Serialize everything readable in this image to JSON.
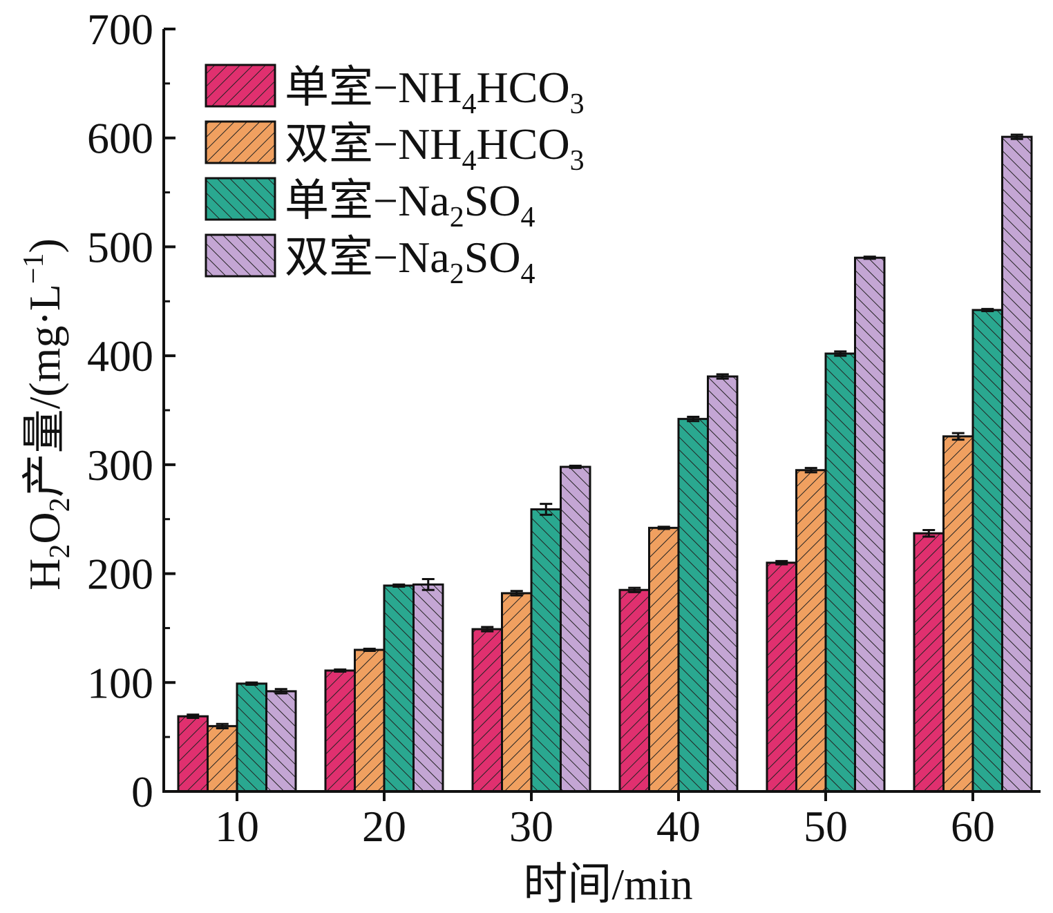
{
  "chart_data": {
    "type": "bar",
    "categories": [
      "10",
      "20",
      "30",
      "40",
      "50",
      "60"
    ],
    "xlabel": "时间/min",
    "ylabel": {
      "base": "H",
      "sub1": "2",
      "mid": "O",
      "sub2": "2",
      "rest": "产量/(mg·L",
      "sup": "−1",
      "end": ")"
    },
    "ylim": [
      0,
      700
    ],
    "yticks": [
      0,
      100,
      200,
      300,
      400,
      500,
      600,
      700
    ],
    "legend_position": "top-left",
    "series": [
      {
        "name": "单室−NH4HCO3",
        "label": {
          "text": "单室−NH",
          "sub1": "4",
          "mid": "HCO",
          "sub2": "3"
        },
        "color": "#e0306f",
        "hatch": "forward",
        "values": [
          69,
          111,
          149,
          185,
          210,
          237
        ],
        "errors": [
          1.5,
          1,
          2,
          2,
          1.5,
          3
        ]
      },
      {
        "name": "双室−NH4HCO3",
        "label": {
          "text": "双室−NH",
          "sub1": "4",
          "mid": "HCO",
          "sub2": "3"
        },
        "color": "#f0a060",
        "hatch": "forward",
        "values": [
          60,
          130,
          182,
          242,
          295,
          326
        ],
        "errors": [
          2,
          1,
          2,
          1,
          2,
          3
        ]
      },
      {
        "name": "单室−Na2SO4",
        "label": {
          "text": "单室−Na",
          "sub1": "2",
          "mid": "SO",
          "sub2": "4"
        },
        "color": "#2aa890",
        "hatch": "back",
        "values": [
          99,
          189,
          259,
          342,
          402,
          442
        ],
        "errors": [
          1,
          1,
          5,
          2,
          2,
          1
        ]
      },
      {
        "name": "双室−Na2SO4",
        "label": {
          "text": "双室−Na",
          "sub1": "2",
          "mid": "SO",
          "sub2": "4"
        },
        "color": "#c4a6d4",
        "hatch": "back",
        "values": [
          92,
          190,
          298,
          381,
          490,
          601
        ],
        "errors": [
          2,
          5,
          1,
          2,
          1,
          2
        ]
      }
    ]
  }
}
